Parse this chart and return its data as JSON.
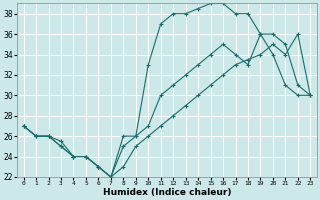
{
  "xlabel": "Humidex (Indice chaleur)",
  "xlim": [
    -0.5,
    23.5
  ],
  "ylim": [
    22,
    39
  ],
  "yticks": [
    22,
    24,
    26,
    28,
    30,
    32,
    34,
    36,
    38
  ],
  "xticks": [
    0,
    1,
    2,
    3,
    4,
    5,
    6,
    7,
    8,
    9,
    10,
    11,
    12,
    13,
    14,
    15,
    16,
    17,
    18,
    19,
    20,
    21,
    22,
    23
  ],
  "bg_color": "#cce8e8",
  "grid_color": "#ffffff",
  "line_color": "#1a6b6b",
  "lines": [
    {
      "x": [
        0,
        1,
        2,
        3,
        4,
        5,
        6,
        7,
        8,
        9,
        10,
        11,
        12,
        13,
        14,
        15,
        16,
        17,
        18,
        19,
        20,
        21,
        22,
        23
      ],
      "y": [
        27,
        26,
        26,
        25,
        24,
        24,
        23,
        22,
        25,
        26,
        33,
        37,
        38,
        38,
        38.5,
        39,
        39,
        38,
        38,
        36,
        34,
        31,
        30,
        30
      ]
    },
    {
      "x": [
        0,
        1,
        2,
        3,
        4,
        5,
        6,
        7,
        8,
        9,
        10,
        11,
        12,
        13,
        14,
        15,
        16,
        17,
        18,
        19,
        20,
        21,
        22,
        23
      ],
      "y": [
        27,
        26,
        26,
        25.5,
        24,
        24,
        23,
        22,
        26,
        26,
        27,
        30,
        31,
        32,
        33,
        34,
        35,
        34,
        33,
        36,
        36,
        35,
        31,
        30
      ]
    },
    {
      "x": [
        0,
        1,
        2,
        3,
        4,
        5,
        6,
        7,
        8,
        9,
        10,
        11,
        12,
        13,
        14,
        15,
        16,
        17,
        18,
        19,
        20,
        21,
        22,
        23
      ],
      "y": [
        27,
        26,
        26,
        25,
        24,
        24,
        23,
        22,
        23,
        25,
        26,
        27,
        28,
        29,
        30,
        31,
        32,
        33,
        33.5,
        34,
        35,
        34,
        36,
        30
      ]
    }
  ]
}
